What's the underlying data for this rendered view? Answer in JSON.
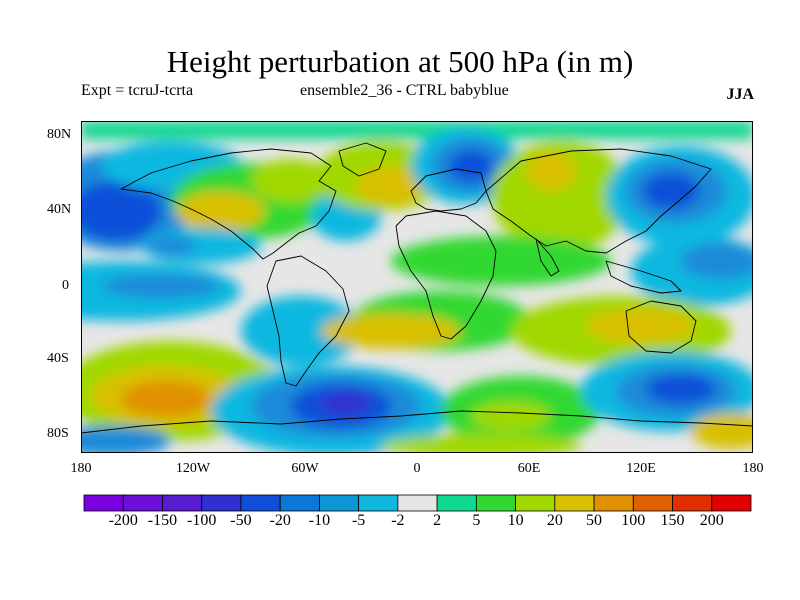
{
  "title": "Height perturbation at 500 hPa (in m)",
  "subtitle_left": "Expt = tcruJ-tcrta",
  "subtitle_center": "ensemble2_36 - CTRL babyblue",
  "subtitle_right": "JJA",
  "lat_labels": [
    "80N",
    "40N",
    "0",
    "40S",
    "80S"
  ],
  "lon_labels": [
    "180",
    "120W",
    "60W",
    "0",
    "60E",
    "120E",
    "180"
  ],
  "colorbar": {
    "colors": [
      "#7a00e0",
      "#6a10d8",
      "#5a1cd0",
      "#3030d0",
      "#1050d8",
      "#0a78d8",
      "#0a98d8",
      "#10b8e0",
      "#e6e6e6",
      "#10d890",
      "#30d830",
      "#a0d800",
      "#d8c000",
      "#e09000",
      "#e06000",
      "#e03000",
      "#e00000"
    ],
    "labels": [
      "-200",
      "-150",
      "-100",
      "-50",
      "-20",
      "-10",
      "-5",
      "-2",
      "2",
      "5",
      "10",
      "20",
      "50",
      "100",
      "150",
      "200"
    ]
  }
}
